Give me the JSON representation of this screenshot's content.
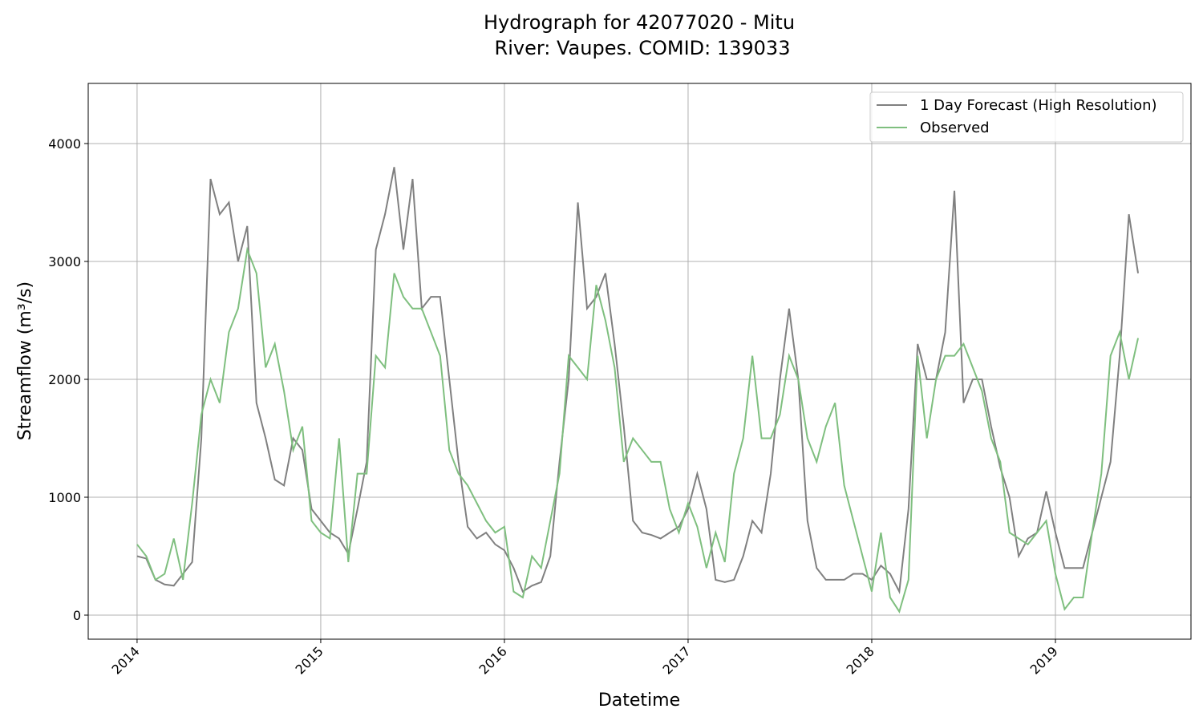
{
  "chart_data": {
    "type": "line",
    "title": [
      "Hydrograph for 42077020 - Mitu",
      "River: Vaupes. COMID: 139033"
    ],
    "xlabel": "Datetime",
    "ylabel": "Streamflow (m³/s)",
    "x": [
      2014.0,
      2014.05,
      2014.1,
      2014.15,
      2014.2,
      2014.25,
      2014.3,
      2014.35,
      2014.4,
      2014.45,
      2014.5,
      2014.55,
      2014.6,
      2014.65,
      2014.7,
      2014.75,
      2014.8,
      2014.85,
      2014.9,
      2014.95,
      2015.0,
      2015.05,
      2015.1,
      2015.15,
      2015.2,
      2015.25,
      2015.3,
      2015.35,
      2015.4,
      2015.45,
      2015.5,
      2015.55,
      2015.6,
      2015.65,
      2015.7,
      2015.75,
      2015.8,
      2015.85,
      2015.9,
      2015.95,
      2016.0,
      2016.05,
      2016.1,
      2016.15,
      2016.2,
      2016.25,
      2016.3,
      2016.35,
      2016.4,
      2016.45,
      2016.5,
      2016.55,
      2016.6,
      2016.65,
      2016.7,
      2016.75,
      2016.8,
      2016.85,
      2016.9,
      2016.95,
      2017.0,
      2017.05,
      2017.1,
      2017.15,
      2017.2,
      2017.25,
      2017.3,
      2017.35,
      2017.4,
      2017.45,
      2017.5,
      2017.55,
      2017.6,
      2017.65,
      2017.7,
      2017.75,
      2017.8,
      2017.85,
      2017.9,
      2017.95,
      2018.0,
      2018.05,
      2018.1,
      2018.15,
      2018.2,
      2018.25,
      2018.3,
      2018.35,
      2018.4,
      2018.45,
      2018.5,
      2018.55,
      2018.6,
      2018.65,
      2018.7,
      2018.75,
      2018.8,
      2018.85,
      2018.9,
      2018.95,
      2019.0,
      2019.05,
      2019.1,
      2019.15,
      2019.2,
      2019.25,
      2019.3,
      2019.35,
      2019.4,
      2019.45
    ],
    "series": [
      {
        "name": "1 Day Forecast (High Resolution)",
        "color": "#808080",
        "values": [
          500,
          480,
          300,
          260,
          250,
          350,
          450,
          1500,
          3700,
          3400,
          3500,
          3000,
          3300,
          1800,
          1500,
          1150,
          1100,
          1500,
          1400,
          900,
          800,
          700,
          650,
          520,
          900,
          1300,
          3100,
          3400,
          3800,
          3100,
          3700,
          2600,
          2700,
          2700,
          2000,
          1300,
          750,
          650,
          700,
          600,
          550,
          400,
          200,
          250,
          280,
          500,
          1300,
          2000,
          3500,
          2600,
          2700,
          2900,
          2300,
          1600,
          800,
          700,
          680,
          650,
          700,
          750,
          900,
          1200,
          900,
          300,
          280,
          300,
          500,
          800,
          700,
          1200,
          2000,
          2600,
          2000,
          800,
          400,
          300,
          300,
          300,
          350,
          350,
          300,
          420,
          350,
          200,
          900,
          2300,
          2000,
          2000,
          2400,
          3600,
          1800,
          2000,
          2000,
          1600,
          1250,
          1000,
          500,
          650,
          700,
          1050,
          700,
          400,
          400,
          400,
          700,
          1000,
          1300,
          2200,
          3400,
          2900
        ]
      },
      {
        "name": "Observed",
        "color": "#7fbf7f",
        "values": [
          600,
          500,
          300,
          350,
          650,
          300,
          950,
          1700,
          2000,
          1800,
          2400,
          2600,
          3100,
          2900,
          2100,
          2300,
          1900,
          1400,
          1600,
          800,
          700,
          650,
          1500,
          450,
          1200,
          1200,
          2200,
          2100,
          2900,
          2700,
          2600,
          2600,
          2400,
          2200,
          1400,
          1200,
          1100,
          950,
          800,
          700,
          750,
          200,
          150,
          500,
          400,
          800,
          1200,
          2200,
          2100,
          2000,
          2800,
          2500,
          2100,
          1300,
          1500,
          1400,
          1300,
          1300,
          900,
          700,
          950,
          750,
          400,
          700,
          450,
          1200,
          1500,
          2200,
          1500,
          1500,
          1700,
          2200,
          2000,
          1500,
          1300,
          1600,
          1800,
          1100,
          800,
          500,
          200,
          700,
          150,
          30,
          300,
          2200,
          1500,
          2000,
          2200,
          2200,
          2300,
          2100,
          1900,
          1500,
          1300,
          700,
          650,
          600,
          700,
          800,
          350,
          50,
          150,
          150,
          700,
          1200,
          2200,
          2400,
          2000,
          2350
        ]
      }
    ],
    "xlim": [
      2013.734,
      2019.738
    ],
    "xticks": [
      2014,
      2015,
      2016,
      2017,
      2018,
      2019
    ],
    "ylim": [
      -204,
      4510
    ],
    "yticks": [
      0,
      1000,
      2000,
      3000,
      4000
    ],
    "grid": true,
    "legend": "upper right"
  }
}
